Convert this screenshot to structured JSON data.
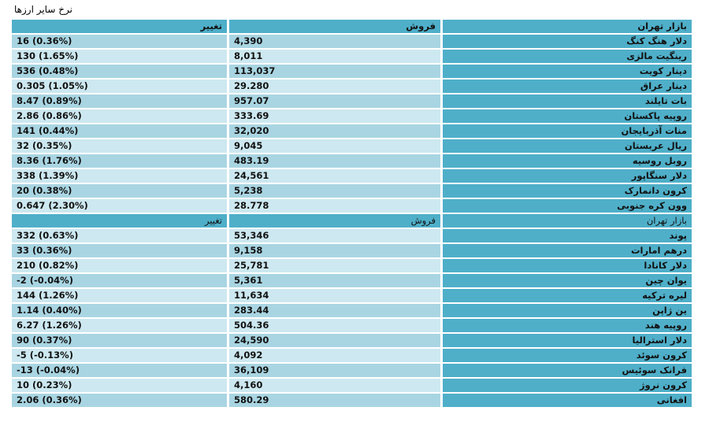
{
  "title": "نرخ سایر ارزها",
  "header": {
    "name": "بازار تهران",
    "sell": "فروش",
    "change": "تغییر"
  },
  "sections": [
    {
      "header": {
        "name": "بازار تهران",
        "sell": "فروش",
        "change": "تغییر"
      },
      "rows": [
        {
          "name": "دلار هنگ کنگ",
          "sell": "4,390",
          "change": "16 (0.36%)"
        },
        {
          "name": "رینگیت مالزی",
          "sell": "8,011",
          "change": "130 (1.65%)"
        },
        {
          "name": "دینار کویت",
          "sell": "113,037",
          "change": "536 (0.48%)"
        },
        {
          "name": "دینار عراق",
          "sell": "29.280",
          "change": "0.305 (1.05%)"
        },
        {
          "name": "بات تایلند",
          "sell": "957.07",
          "change": "8.47 (0.89%)"
        },
        {
          "name": "روپیه پاکستان",
          "sell": "333.69",
          "change": "2.86 (0.86%)"
        },
        {
          "name": "منات آذربایجان",
          "sell": "32,020",
          "change": "141 (0.44%)"
        },
        {
          "name": "ریال عربستان",
          "sell": "9,045",
          "change": "32 (0.35%)"
        },
        {
          "name": "روبل روسیه",
          "sell": "483.19",
          "change": "8.36 (1.76%)"
        },
        {
          "name": "دلار سنگاپور",
          "sell": "24,561",
          "change": "338 (1.39%)"
        },
        {
          "name": "کرون دانمارک",
          "sell": "5,238",
          "change": "20 (0.38%)"
        },
        {
          "name": "وون کره جنوبی",
          "sell": "28.778",
          "change": "0.647 (2.30%)"
        }
      ]
    },
    {
      "header": {
        "name": "بازار تهران",
        "sell": "فروش",
        "change": "تغییر"
      },
      "rows": [
        {
          "name": "پوند",
          "sell": "53,346",
          "change": "332 (0.63%)"
        },
        {
          "name": "درهم امارات",
          "sell": "9,158",
          "change": "33 (0.36%)"
        },
        {
          "name": "دلار کانادا",
          "sell": "25,781",
          "change": "210 (0.82%)"
        },
        {
          "name": "یوان چین",
          "sell": "5,361",
          "change": "-2 (-0.04%)"
        },
        {
          "name": "لیره ترکیه",
          "sell": "11,634",
          "change": "144 (1.26%)"
        },
        {
          "name": "ین ژاپن",
          "sell": "283.44",
          "change": "1.14 (0.40%)"
        },
        {
          "name": "روپیه هند",
          "sell": "504.36",
          "change": "6.27 (1.26%)"
        },
        {
          "name": "دلار استرالیا",
          "sell": "24,590",
          "change": "90 (0.37%)"
        },
        {
          "name": "کرون سوئد",
          "sell": "4,092",
          "change": "-5 (-0.13%)"
        },
        {
          "name": "فرانک سوئیس",
          "sell": "36,109",
          "change": "-13 (-0.04%)"
        },
        {
          "name": "کرون نروژ",
          "sell": "4,160",
          "change": "10 (0.23%)"
        },
        {
          "name": "افغانی",
          "sell": "580.29",
          "change": "2.06 (0.36%)"
        }
      ]
    }
  ],
  "colors": {
    "header": "#4fafc9",
    "row_even": "#a9d5e2",
    "row_odd": "#cde8f0"
  }
}
